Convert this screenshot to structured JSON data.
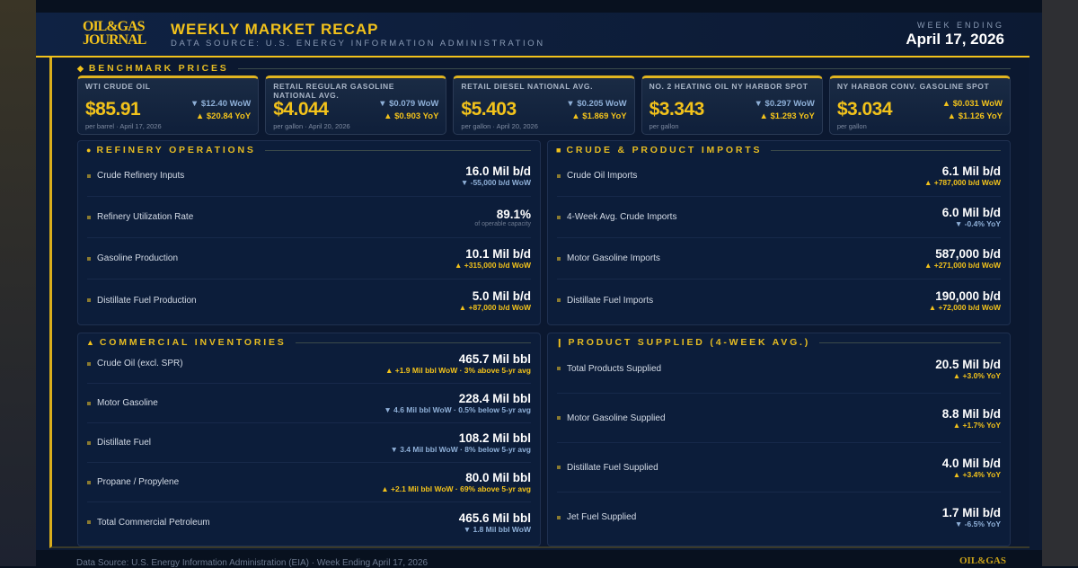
{
  "header": {
    "logo": "OIL&GAS JOURNAL",
    "logo_l1": "OIL&GAS",
    "logo_l2": "JOURNAL",
    "title": "WEEKLY MARKET RECAP",
    "subtitle": "DATA SOURCE: U.S. ENERGY INFORMATION ADMINISTRATION",
    "week_label": "WEEK ENDING",
    "week_date": "April 17, 2026"
  },
  "colors": {
    "accent": "#f2c21b",
    "background": "#0c1a33",
    "down": "#8fb0d8",
    "up": "#f2c21b"
  },
  "benchmark": {
    "title": "BENCHMARK PRICES",
    "icon": "diamond-icon",
    "cards": [
      {
        "label": "WTI CRUDE OIL",
        "value": "$85.91",
        "sub": "per barrel · April 17, 2026",
        "wow": "▼ $12.40 WoW",
        "wow_dir": "dn",
        "yoy": "▲ $20.84 YoY",
        "yoy_dir": "up"
      },
      {
        "label": "RETAIL REGULAR GASOLINE NATIONAL AVG.",
        "value": "$4.044",
        "sub": "per gallon · April 20, 2026",
        "wow": "▼ $0.079 WoW",
        "wow_dir": "dn",
        "yoy": "▲ $0.903 YoY",
        "yoy_dir": "up"
      },
      {
        "label": "RETAIL DIESEL NATIONAL AVG.",
        "value": "$5.403",
        "sub": "per gallon · April 20, 2026",
        "wow": "▼ $0.205 WoW",
        "wow_dir": "dn",
        "yoy": "▲ $1.869 YoY",
        "yoy_dir": "up"
      },
      {
        "label": "NO. 2 HEATING OIL NY HARBOR SPOT",
        "value": "$3.343",
        "sub": "per gallon",
        "wow": "▼ $0.297 WoW",
        "wow_dir": "dn",
        "yoy": "▲ $1.293 YoY",
        "yoy_dir": "up"
      },
      {
        "label": "NY HARBOR CONV. GASOLINE SPOT",
        "value": "$3.034",
        "sub": "per gallon",
        "wow": "▲ $0.031 WoW",
        "wow_dir": "up",
        "yoy": "▲ $1.126 YoY",
        "yoy_dir": "up"
      }
    ]
  },
  "sections": [
    {
      "id": "refinery",
      "title": "REFINERY OPERATIONS",
      "icon": "●",
      "rows": [
        {
          "label": "Crude Refinery Inputs",
          "value": "16.0 Mil b/d",
          "sub": "▼ -55,000 b/d WoW",
          "dir": "dn"
        },
        {
          "label": "Refinery Utilization Rate",
          "value": "89.1%",
          "sub": "of operable capacity",
          "dir": "note"
        },
        {
          "label": "Gasoline Production",
          "value": "10.1 Mil b/d",
          "sub": "▲ +315,000 b/d WoW",
          "dir": "up"
        },
        {
          "label": "Distillate Fuel Production",
          "value": "5.0 Mil b/d",
          "sub": "▲ +87,000 b/d WoW",
          "dir": "up"
        }
      ]
    },
    {
      "id": "imports",
      "title": "CRUDE & PRODUCT IMPORTS",
      "icon": "■",
      "rows": [
        {
          "label": "Crude Oil Imports",
          "value": "6.1 Mil b/d",
          "sub": "▲ +787,000 b/d WoW",
          "dir": "up"
        },
        {
          "label": "4-Week Avg. Crude Imports",
          "value": "6.0 Mil b/d",
          "sub": "▼ -0.4% YoY",
          "dir": "dn"
        },
        {
          "label": "Motor Gasoline Imports",
          "value": "587,000 b/d",
          "sub": "▲ +271,000 b/d WoW",
          "dir": "up"
        },
        {
          "label": "Distillate Fuel Imports",
          "value": "190,000 b/d",
          "sub": "▲ +72,000 b/d WoW",
          "dir": "up"
        }
      ]
    },
    {
      "id": "inventories",
      "title": "COMMERCIAL INVENTORIES",
      "icon": "▲",
      "rows": [
        {
          "label": "Crude Oil (excl. SPR)",
          "value": "465.7 Mil bbl",
          "sub": "▲ +1.9 Mil bbl WoW · 3% above 5-yr avg",
          "dir": "up"
        },
        {
          "label": "Motor Gasoline",
          "value": "228.4 Mil bbl",
          "sub": "▼ 4.6 Mil bbl WoW · 0.5% below 5-yr avg",
          "dir": "dn"
        },
        {
          "label": "Distillate Fuel",
          "value": "108.2 Mil bbl",
          "sub": "▼ 3.4 Mil bbl WoW · 8% below 5-yr avg",
          "dir": "dn"
        },
        {
          "label": "Propane / Propylene",
          "value": "80.0 Mil bbl",
          "sub": "▲ +2.1 Mil bbl WoW · 69% above 5-yr avg",
          "dir": "up"
        },
        {
          "label": "Total Commercial Petroleum",
          "value": "465.6 Mil bbl",
          "sub": "▼ 1.8 Mil bbl WoW",
          "dir": "dn"
        }
      ]
    },
    {
      "id": "supplied",
      "title": "PRODUCT SUPPLIED (4-WEEK AVG.)",
      "icon": "❙",
      "rows": [
        {
          "label": "Total Products Supplied",
          "value": "20.5 Mil b/d",
          "sub": "▲ +3.0% YoY",
          "dir": "up"
        },
        {
          "label": "Motor Gasoline Supplied",
          "value": "8.8 Mil b/d",
          "sub": "▲ +1.7% YoY",
          "dir": "up"
        },
        {
          "label": "Distillate Fuel Supplied",
          "value": "4.0 Mil b/d",
          "sub": "▲ +3.4% YoY",
          "dir": "up"
        },
        {
          "label": "Jet Fuel Supplied",
          "value": "1.7 Mil b/d",
          "sub": "▼ -6.5% YoY",
          "dir": "dn"
        }
      ]
    }
  ],
  "footer": {
    "text": "Data Source: U.S. Energy Information Administration (EIA)  ·  Week Ending April 17, 2026",
    "logo": "OIL&GAS"
  }
}
